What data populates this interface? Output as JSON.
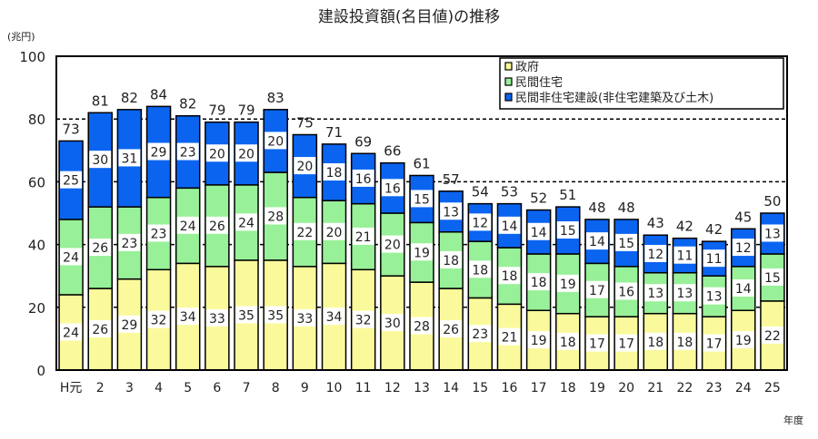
{
  "chart_data": {
    "type": "bar",
    "stacked": true,
    "title": "建設投資額(名目値)の推移",
    "ylabel": "(兆円)",
    "xlabel": "年度",
    "ylim": [
      0,
      100
    ],
    "yticks": [
      0,
      20,
      40,
      60,
      80,
      100
    ],
    "grid": "dashed horizontal at 20,40,60,80",
    "legend_position": "top-right",
    "categories": [
      "H元",
      "2",
      "3",
      "4",
      "5",
      "6",
      "7",
      "8",
      "9",
      "10",
      "11",
      "12",
      "13",
      "14",
      "15",
      "16",
      "17",
      "18",
      "19",
      "20",
      "21",
      "22",
      "23",
      "24",
      "25"
    ],
    "series": [
      {
        "name": "政府",
        "color": "#fafa9c",
        "values": [
          24,
          26,
          29,
          32,
          34,
          33,
          35,
          35,
          33,
          34,
          32,
          30,
          28,
          26,
          23,
          21,
          19,
          18,
          17,
          17,
          18,
          18,
          17,
          19,
          22
        ]
      },
      {
        "name": "民間住宅",
        "color": "#98f098",
        "values": [
          24,
          26,
          23,
          23,
          24,
          26,
          24,
          28,
          22,
          20,
          21,
          20,
          19,
          18,
          18,
          18,
          18,
          19,
          17,
          16,
          13,
          13,
          13,
          14,
          15
        ]
      },
      {
        "name": "民間非住宅建設(非住宅建築及び土木)",
        "color": "#0a64f0",
        "values": [
          25,
          30,
          31,
          29,
          23,
          20,
          20,
          20,
          20,
          18,
          16,
          16,
          15,
          13,
          12,
          14,
          14,
          15,
          14,
          15,
          12,
          11,
          11,
          12,
          13
        ]
      }
    ],
    "totals": [
      73,
      81,
      82,
      84,
      82,
      79,
      79,
      83,
      75,
      71,
      69,
      66,
      61,
      57,
      54,
      53,
      52,
      51,
      48,
      48,
      43,
      42,
      42,
      45,
      50
    ]
  }
}
